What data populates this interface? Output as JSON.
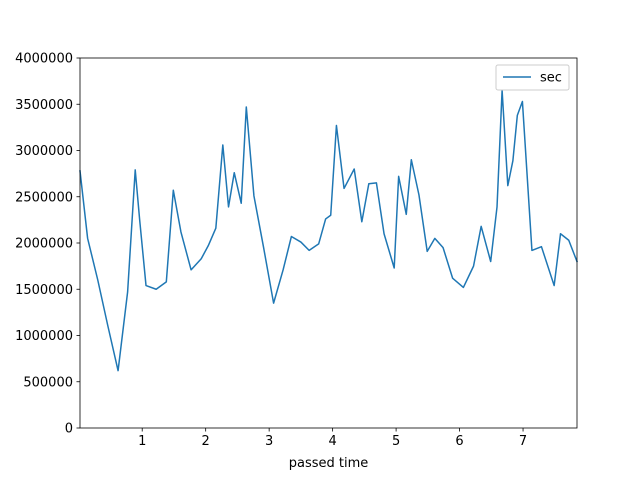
{
  "chart_data": {
    "type": "line",
    "title": "",
    "xlabel": "passed time",
    "ylabel": "",
    "xlim": [
      0.02,
      7.85
    ],
    "ylim": [
      0,
      4000000
    ],
    "xticks": [
      1,
      2,
      3,
      4,
      5,
      6,
      7
    ],
    "yticks": [
      0,
      500000,
      1000000,
      1500000,
      2000000,
      2500000,
      3000000,
      3500000,
      4000000
    ],
    "grid": false,
    "legend": {
      "position": "top-right",
      "entries": [
        "sec"
      ]
    },
    "series": [
      {
        "name": "sec",
        "color": "#1f77b4",
        "x": [
          0.02,
          0.14,
          0.3,
          0.46,
          0.62,
          0.77,
          0.89,
          0.96,
          1.06,
          1.22,
          1.38,
          1.49,
          1.61,
          1.77,
          1.93,
          2.04,
          2.16,
          2.27,
          2.36,
          2.45,
          2.56,
          2.64,
          2.76,
          2.91,
          3.07,
          3.22,
          3.35,
          3.5,
          3.63,
          3.78,
          3.89,
          3.97,
          4.06,
          4.18,
          4.34,
          4.46,
          4.57,
          4.69,
          4.81,
          4.97,
          5.04,
          5.16,
          5.24,
          5.36,
          5.49,
          5.61,
          5.74,
          5.89,
          6.06,
          6.22,
          6.34,
          6.49,
          6.59,
          6.67,
          6.76,
          6.84,
          6.91,
          6.99,
          7.14,
          7.29,
          7.49,
          7.59,
          7.72,
          7.85
        ],
        "y": [
          2780000,
          2050000,
          1600000,
          1100000,
          620000,
          1470000,
          2790000,
          2250000,
          1540000,
          1500000,
          1580000,
          2570000,
          2120000,
          1710000,
          1830000,
          1970000,
          2160000,
          3060000,
          2390000,
          2760000,
          2430000,
          3470000,
          2510000,
          1960000,
          1350000,
          1710000,
          2070000,
          2010000,
          1920000,
          1990000,
          2260000,
          2300000,
          3270000,
          2590000,
          2800000,
          2230000,
          2640000,
          2650000,
          2100000,
          1730000,
          2720000,
          2310000,
          2900000,
          2520000,
          1910000,
          2050000,
          1950000,
          1620000,
          1520000,
          1750000,
          2180000,
          1800000,
          2390000,
          3650000,
          2620000,
          2890000,
          3380000,
          3530000,
          1920000,
          1960000,
          1540000,
          2100000,
          2030000,
          1800000
        ]
      }
    ]
  }
}
